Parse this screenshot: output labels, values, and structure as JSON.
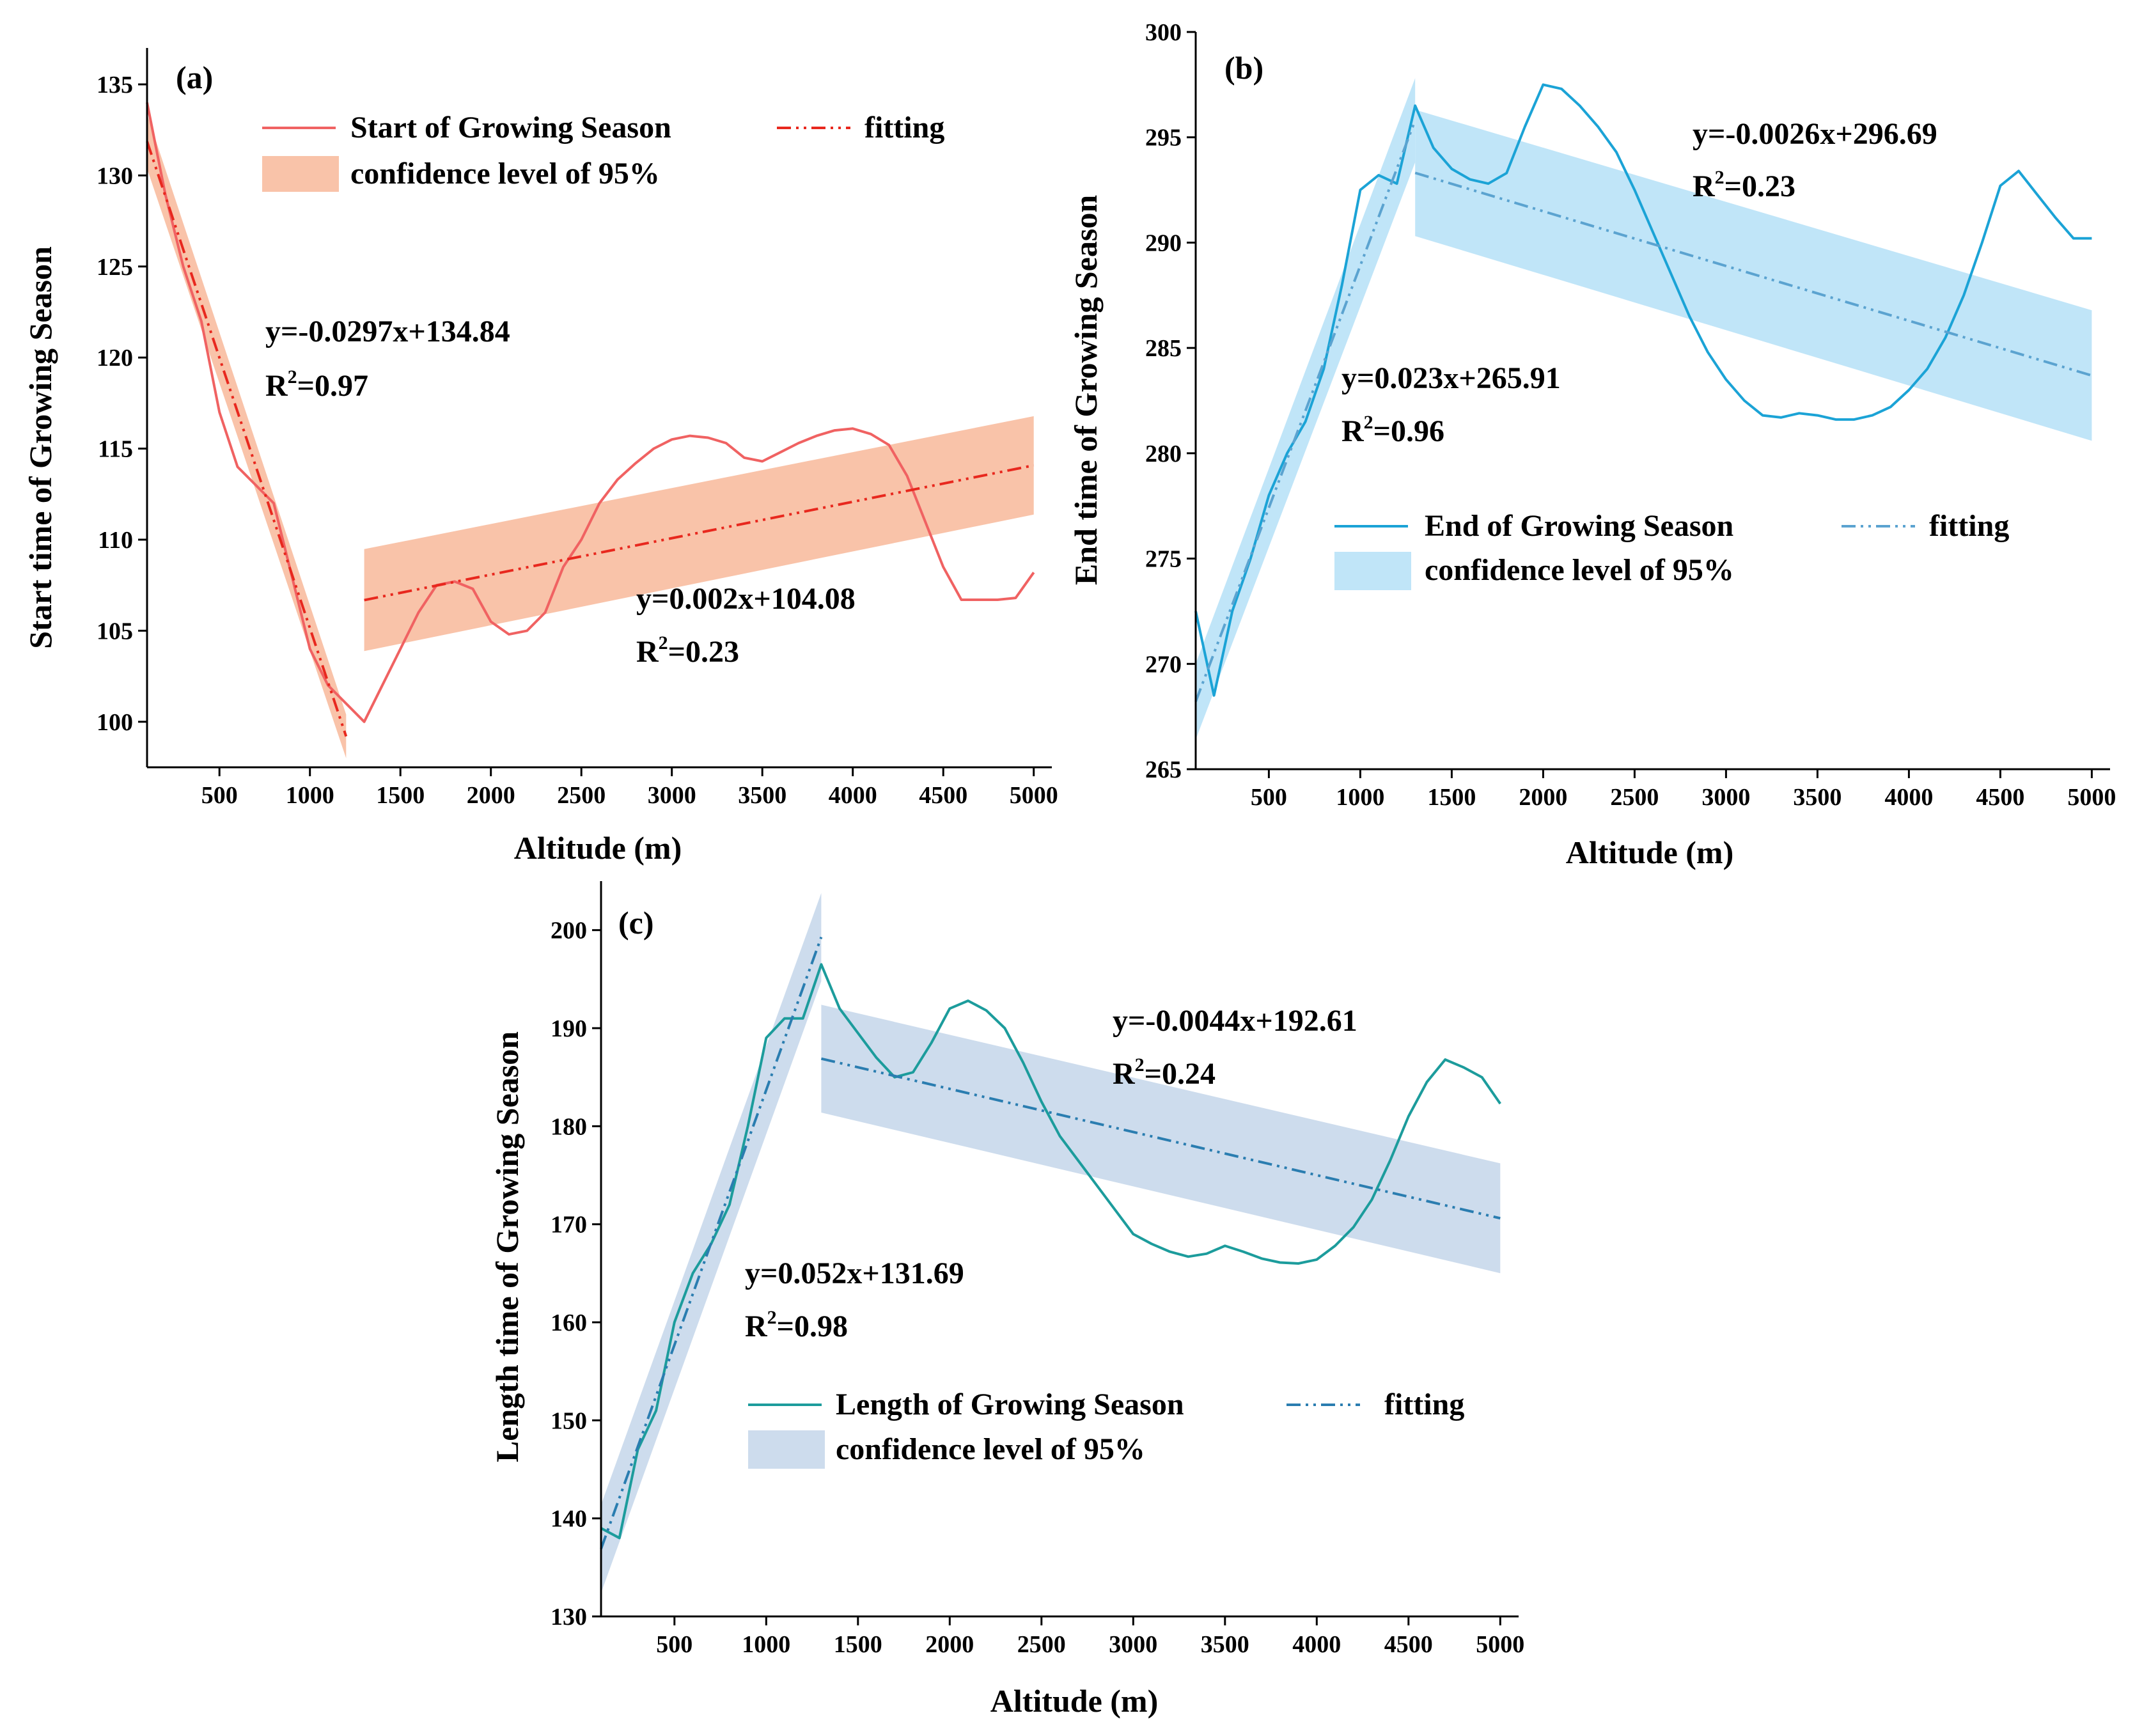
{
  "chart_data": [
    {
      "type": "line",
      "panel_label": "(a)",
      "xlabel": "Altitude (m)",
      "ylabel": "Start time of Growing Season",
      "xlim": [
        100,
        5100
      ],
      "ylim": [
        97.5,
        137
      ],
      "xticks": [
        500,
        1000,
        1500,
        2000,
        2500,
        3000,
        3500,
        4000,
        4500,
        5000
      ],
      "yticks": [
        100,
        105,
        110,
        115,
        120,
        125,
        130,
        135
      ],
      "colors": {
        "line": "#f06262",
        "fit": "#e8281e",
        "band": "#f8b99a"
      },
      "legend": {
        "position": "top",
        "line": "Start of Growing Season",
        "fit": "fitting",
        "band": "confidence level of 95%"
      },
      "series": {
        "name": "Start of Growing Season",
        "x": [
          100,
          200,
          300,
          400,
          500,
          600,
          700,
          800,
          900,
          1000,
          1100,
          1200,
          1300,
          1400,
          1500,
          1600,
          1700,
          1800,
          1900,
          2000,
          2100,
          2200,
          2300,
          2400,
          2500,
          2600,
          2700,
          2800,
          2900,
          3000,
          3100,
          3200,
          3300,
          3400,
          3500,
          3600,
          3700,
          3800,
          3900,
          4000,
          4100,
          4200,
          4300,
          4400,
          4500,
          4600,
          4700,
          4800,
          4900,
          5000
        ],
        "y": [
          134,
          129,
          125,
          122,
          117,
          114,
          113,
          112,
          108,
          104,
          102,
          101,
          100,
          102,
          104,
          106,
          107.5,
          107.7,
          107.3,
          105.5,
          104.8,
          105,
          106,
          108.5,
          110,
          112,
          113.3,
          114.2,
          115,
          115.5,
          115.7,
          115.6,
          115.3,
          114.5,
          114.3,
          114.8,
          115.3,
          115.7,
          116,
          116.1,
          115.8,
          115.2,
          113.5,
          111,
          108.5,
          106.7,
          106.7,
          106.7,
          106.8,
          108.2
        ]
      },
      "fits": [
        {
          "x_range": [
            100,
            1200
          ],
          "equation": "y=-0.0297x+134.84",
          "r2_prefix": "R",
          "r2_sup": "2",
          "r2_value": "=0.97",
          "slope": -0.0297,
          "intercept": 134.84,
          "band_start": [
            1.5,
            1.5
          ],
          "band_end": [
            1.2,
            1.2
          ]
        },
        {
          "x_range": [
            1300,
            5000
          ],
          "equation": "y=0.002x+104.08",
          "r2_prefix": "R",
          "r2_sup": "2",
          "r2_value": "=0.23",
          "slope": 0.002,
          "intercept": 104.08,
          "band_start": [
            2.8,
            2.8
          ],
          "band_end": [
            2.7,
            2.7
          ]
        }
      ]
    },
    {
      "type": "line",
      "panel_label": "(b)",
      "xlabel": "Altitude (m)",
      "ylabel": "End time of Growing Season",
      "xlim": [
        100,
        5100
      ],
      "ylim": [
        265,
        300
      ],
      "xticks": [
        500,
        1000,
        1500,
        2000,
        2500,
        3000,
        3500,
        4000,
        4500,
        5000
      ],
      "yticks": [
        265,
        270,
        275,
        280,
        285,
        290,
        295,
        300
      ],
      "colors": {
        "line": "#1ba3d6",
        "fit": "#5ba3d0",
        "band": "#b5e1f7"
      },
      "legend": {
        "position": "center-right",
        "line": "End of Growing Season",
        "fit": "fitting",
        "band": "confidence level of 95%"
      },
      "series": {
        "name": "End of Growing Season",
        "x": [
          100,
          200,
          300,
          400,
          500,
          600,
          700,
          800,
          900,
          1000,
          1100,
          1200,
          1300,
          1400,
          1500,
          1600,
          1700,
          1800,
          1900,
          2000,
          2100,
          2200,
          2300,
          2400,
          2500,
          2600,
          2700,
          2800,
          2900,
          3000,
          3100,
          3200,
          3300,
          3400,
          3500,
          3600,
          3700,
          3800,
          3900,
          4000,
          4100,
          4200,
          4300,
          4400,
          4500,
          4600,
          4700,
          4800,
          4900,
          5000
        ],
        "y": [
          272.5,
          268.5,
          272.5,
          275,
          278,
          280,
          281.5,
          284,
          288,
          292.5,
          293.2,
          292.8,
          296.5,
          294.5,
          293.5,
          293,
          292.8,
          293.3,
          295.5,
          297.5,
          297.3,
          296.5,
          295.5,
          294.3,
          292.5,
          290.5,
          288.5,
          286.5,
          284.8,
          283.5,
          282.5,
          281.8,
          281.7,
          281.9,
          281.8,
          281.6,
          281.6,
          281.8,
          282.2,
          283,
          284,
          285.5,
          287.5,
          290,
          292.7,
          293.4,
          292.3,
          291.2,
          290.2,
          290.2
        ]
      },
      "fits": [
        {
          "x_range": [
            100,
            1300
          ],
          "equation": "y=0.023x+265.91",
          "r2_prefix": "R",
          "r2_sup": "2",
          "r2_value": "=0.96",
          "slope": 0.023,
          "intercept": 265.91,
          "band_start": [
            1.8,
            1.8
          ],
          "band_end": [
            2.0,
            2.0
          ]
        },
        {
          "x_range": [
            1300,
            5000
          ],
          "equation": "y=-0.0026x+296.69",
          "r2_prefix": "R",
          "r2_sup": "2",
          "r2_value": "=0.23",
          "slope": -0.0026,
          "intercept": 296.69,
          "band_start": [
            3.0,
            3.0
          ],
          "band_end": [
            3.1,
            3.1
          ]
        }
      ]
    },
    {
      "type": "line",
      "panel_label": "(c)",
      "xlabel": "Altitude (m)",
      "ylabel": "Length time of Growing Season",
      "xlim": [
        100,
        5100
      ],
      "ylim": [
        130,
        205
      ],
      "xticks": [
        500,
        1000,
        1500,
        2000,
        2500,
        3000,
        3500,
        4000,
        4500,
        5000
      ],
      "yticks": [
        130,
        140,
        150,
        160,
        170,
        180,
        190,
        200
      ],
      "colors": {
        "line": "#1c9c9c",
        "fit": "#2a7db0",
        "band": "#c4d6ea"
      },
      "legend": {
        "position": "bottom-left",
        "line": "Length of Growing Season",
        "fit": "fitting",
        "band": "confidence level of 95%"
      },
      "series": {
        "name": "Length of Growing Season",
        "x": [
          100,
          200,
          300,
          400,
          500,
          600,
          700,
          800,
          900,
          1000,
          1100,
          1200,
          1300,
          1400,
          1500,
          1600,
          1700,
          1800,
          1900,
          2000,
          2100,
          2200,
          2300,
          2400,
          2500,
          2600,
          2700,
          2800,
          2900,
          3000,
          3100,
          3200,
          3300,
          3400,
          3500,
          3600,
          3700,
          3800,
          3900,
          4000,
          4100,
          4200,
          4300,
          4400,
          4500,
          4600,
          4700,
          4800,
          4900,
          5000
        ],
        "y": [
          139,
          138,
          147,
          151,
          160,
          165,
          168,
          172,
          180,
          189,
          191,
          191,
          196.5,
          192,
          189.5,
          187,
          185,
          185.5,
          188.5,
          192,
          192.8,
          191.8,
          190,
          186.5,
          182.5,
          179,
          176.5,
          174,
          171.5,
          169,
          168,
          167.2,
          166.7,
          167,
          167.8,
          167.2,
          166.5,
          166.1,
          166,
          166.4,
          167.8,
          169.7,
          172.5,
          176.5,
          181,
          184.5,
          186.8,
          186,
          185,
          182.3
        ]
      },
      "fits": [
        {
          "x_range": [
            100,
            1300
          ],
          "equation": "y=0.052x+131.69",
          "r2_prefix": "R",
          "r2_sup": "2",
          "r2_value": "=0.98",
          "slope": 0.052,
          "intercept": 131.69,
          "band_start": [
            4.5,
            4.5
          ],
          "band_end": [
            4.5,
            4.5
          ]
        },
        {
          "x_range": [
            1300,
            5000
          ],
          "equation": "y=-0.0044x+192.61",
          "r2_prefix": "R",
          "r2_sup": "2",
          "r2_value": "=0.24",
          "slope": -0.0044,
          "intercept": 192.61,
          "band_start": [
            5.5,
            5.5
          ],
          "band_end": [
            5.6,
            5.6
          ]
        }
      ]
    }
  ]
}
